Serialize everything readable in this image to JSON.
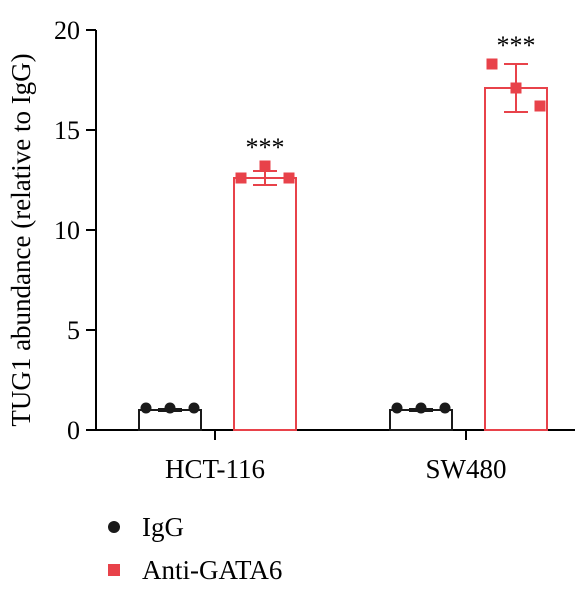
{
  "chart_data": {
    "type": "bar",
    "ylabel": "TUG1 abundance (relative to IgG)",
    "xlabel": "",
    "ylim": [
      0,
      20
    ],
    "yticks": [
      0,
      5,
      10,
      15,
      20
    ],
    "categories": [
      "HCT-116",
      "SW480"
    ],
    "series": [
      {
        "name": "IgG",
        "color": "#1a1a1a",
        "marker": "circle",
        "values": [
          1.0,
          1.0
        ],
        "error": [
          0.05,
          0.05
        ],
        "points": [
          [
            1.1,
            1.1,
            1.1
          ],
          [
            1.1,
            1.1,
            1.1
          ]
        ]
      },
      {
        "name": "Anti-GATA6",
        "color": "#e8424a",
        "marker": "square",
        "values": [
          12.6,
          17.1
        ],
        "error": [
          0.35,
          1.2
        ],
        "points": [
          [
            12.6,
            13.2,
            12.6
          ],
          [
            18.3,
            17.1,
            16.2
          ]
        ]
      }
    ],
    "annotations": [
      "***",
      "***"
    ],
    "legend": "bottom-left",
    "grid": false
  }
}
